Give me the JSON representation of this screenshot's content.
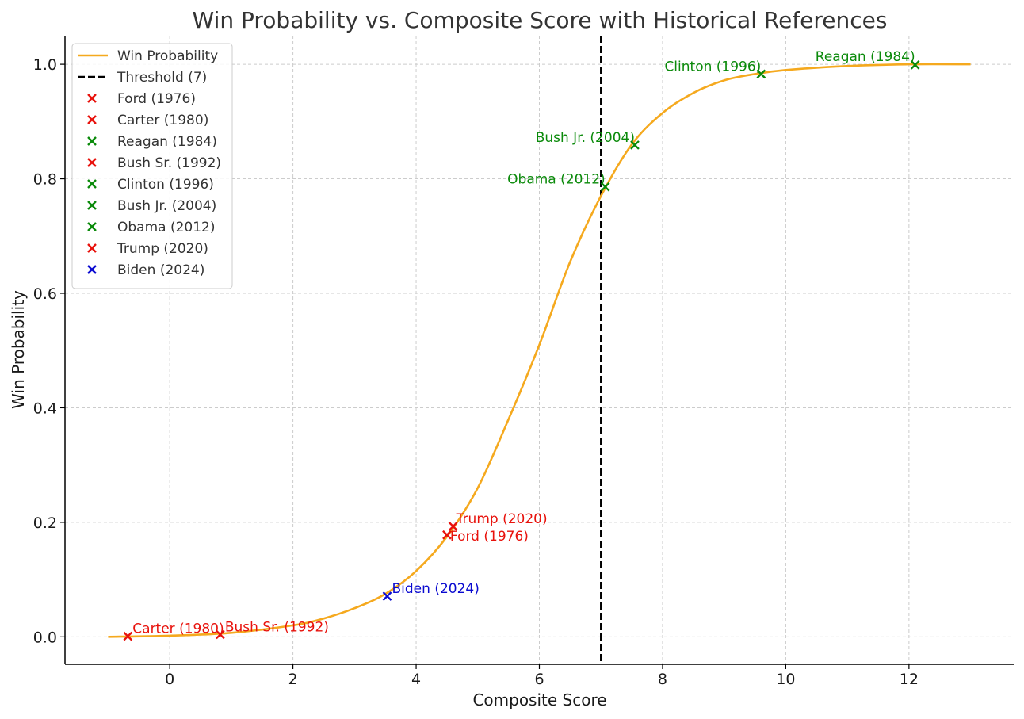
{
  "chart_data": {
    "type": "line",
    "title": "Win Probability vs. Composite Score with Historical References",
    "xlabel": "Composite Score",
    "ylabel": "Win Probability",
    "xlim": [
      -1.7,
      13.7
    ],
    "ylim": [
      -0.048,
      1.05
    ],
    "xticks": [
      0,
      2,
      4,
      6,
      8,
      10,
      12
    ],
    "yticks": [
      0.0,
      0.2,
      0.4,
      0.6,
      0.8,
      1.0
    ],
    "xtick_labels": [
      "0",
      "2",
      "4",
      "6",
      "8",
      "10",
      "12"
    ],
    "ytick_labels": [
      "0.0",
      "0.2",
      "0.4",
      "0.6",
      "0.8",
      "1.0"
    ],
    "grid": true,
    "legend_position": "top-left",
    "curve": {
      "name": "Win Probability",
      "color": "#f5a91e",
      "x": [
        -1,
        0,
        1,
        2,
        2.5,
        3,
        3.5,
        4,
        4.5,
        5,
        5.5,
        6,
        6.5,
        7,
        7.5,
        8,
        8.5,
        9,
        9.5,
        10,
        11,
        12,
        13
      ],
      "y": [
        0.0,
        0.002,
        0.007,
        0.02,
        0.032,
        0.05,
        0.075,
        0.115,
        0.175,
        0.26,
        0.38,
        0.51,
        0.655,
        0.77,
        0.86,
        0.915,
        0.95,
        0.972,
        0.983,
        0.99,
        0.997,
        1.0,
        1.0
      ]
    },
    "threshold": {
      "name": "Threshold (7)",
      "x": 7,
      "color": "#000000"
    },
    "points": [
      {
        "name": "Ford (1976)",
        "x": 4.5,
        "y": 0.178,
        "color": "#e8120c",
        "label_dx": 4,
        "label_dy": 7,
        "anchor": "start"
      },
      {
        "name": "Carter (1980)",
        "x": -0.68,
        "y": 0.001,
        "color": "#e8120c",
        "label_dx": 6,
        "label_dy": -4,
        "anchor": "start"
      },
      {
        "name": "Reagan (1984)",
        "x": 12.1,
        "y": 0.999,
        "color": "#0a8a0a",
        "label_dx": 0,
        "label_dy": -5,
        "anchor": "end"
      },
      {
        "name": "Bush Sr. (1992)",
        "x": 0.82,
        "y": 0.004,
        "color": "#e8120c",
        "label_dx": 6,
        "label_dy": -4,
        "anchor": "start"
      },
      {
        "name": "Clinton (1996)",
        "x": 9.6,
        "y": 0.983,
        "color": "#0a8a0a",
        "label_dx": 0,
        "label_dy": -4,
        "anchor": "end"
      },
      {
        "name": "Bush Jr. (2004)",
        "x": 7.55,
        "y": 0.859,
        "color": "#0a8a0a",
        "label_dx": 0,
        "label_dy": -4,
        "anchor": "end"
      },
      {
        "name": "Obama (2012)",
        "x": 7.07,
        "y": 0.786,
        "color": "#0a8a0a",
        "label_dx": 0,
        "label_dy": -4,
        "anchor": "end"
      },
      {
        "name": "Trump (2020)",
        "x": 4.6,
        "y": 0.193,
        "color": "#e8120c",
        "label_dx": 4,
        "label_dy": -4,
        "anchor": "start"
      },
      {
        "name": "Biden (2024)",
        "x": 3.53,
        "y": 0.071,
        "color": "#0a0ad0",
        "label_dx": 6,
        "label_dy": -4,
        "anchor": "start"
      }
    ]
  }
}
